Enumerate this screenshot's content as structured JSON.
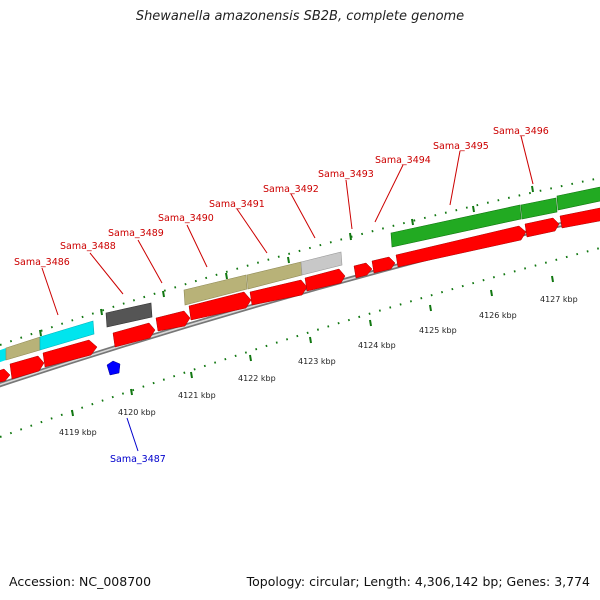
{
  "title": "Shewanella amazonensis SB2B, complete genome",
  "footer": {
    "accession": "Accession: NC_008700",
    "summary": "Topology: circular; Length: 4,306,142 bp; Genes: 3,774"
  },
  "colors": {
    "cds": "#ff0000",
    "cds_label": "#cc0000",
    "reverse_label": "#0000cc",
    "reverse_feature": "#0000ff",
    "cog_cyan": "#00e5ee",
    "cog_olive": "#b8b278",
    "cog_dark": "#555555",
    "cog_lightgray": "#c8c8c8",
    "cog_green": "#22aa22",
    "backbone": "#888888",
    "tick_upper": "#117711",
    "tick_lower": "#117711"
  },
  "scale_labels": [
    "4119 kbp",
    "4120 kbp",
    "4121 kbp",
    "4122 kbp",
    "4123 kbp",
    "4124 kbp",
    "4125 kbp",
    "4126 kbp",
    "4127 kbp"
  ],
  "forward_gene_labels": [
    "Sama_3486",
    "Sama_3488",
    "Sama_3489",
    "Sama_3490",
    "Sama_3491",
    "Sama_3492",
    "Sama_3493",
    "Sama_3494",
    "Sama_3495",
    "Sama_3496"
  ],
  "reverse_gene_labels": [
    "Sama_3487"
  ]
}
